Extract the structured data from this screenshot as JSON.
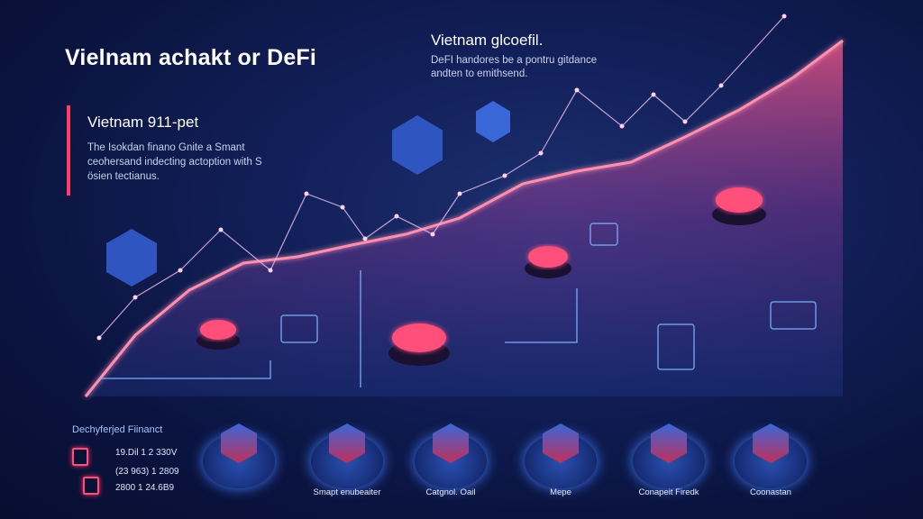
{
  "header": {
    "title": "Vielnam achakt or DeFi"
  },
  "right_panel": {
    "title": "Vietnam glcoefil.",
    "description": "DeFI handores be a pontru gitdance andten to emithsend."
  },
  "section": {
    "title": "Vietnam 911-pet",
    "description": "The Isokdan finano Gnite a Smant ceohersand indecting actoption with S ösien tectianus."
  },
  "legend": {
    "title": "Dechyferjed Fiinanct",
    "rows": [
      "19.Dil 1 2 330V",
      "(23 963) 1 2809",
      "2800 1 24.6B9"
    ]
  },
  "bottom_items": [
    {
      "label": "",
      "icon": "globe-icon"
    },
    {
      "label": "Smapt enubeaiter",
      "icon": "shield-icon"
    },
    {
      "label": "Catgnol. Oail",
      "icon": "wallet-icon"
    },
    {
      "label": "Mepe",
      "icon": "circuit-icon"
    },
    {
      "label": "Conapeit Firedk",
      "icon": "chip-icon"
    },
    {
      "label": "Coonastan",
      "icon": "coin-icon"
    }
  ],
  "colors": {
    "background": "#0b1440",
    "accent": "#ff4060",
    "glow_pink": "#ff5a8a",
    "glow_blue": "#3f7cff"
  }
}
